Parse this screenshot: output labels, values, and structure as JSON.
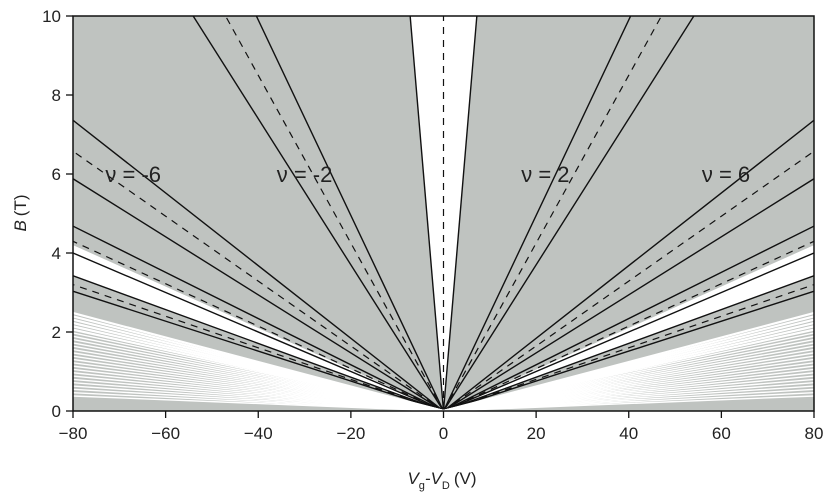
{
  "chart_data": {
    "type": "area",
    "xlabel": "V",
    "xlabel_sub1": "g",
    "xlabel_mid": "-V",
    "xlabel_sub2": "D",
    "xlabel_unit": "(V)",
    "ylabel": "B",
    "ylabel_unit": "(T)",
    "xlim": [
      -80,
      80
    ],
    "ylim": [
      0,
      10
    ],
    "x_ticks": [
      "-80",
      "-60",
      "-40",
      "-20",
      "0",
      "20",
      "40",
      "60",
      "80"
    ],
    "y_ticks": [
      "0",
      "2",
      "4",
      "6",
      "8",
      "10"
    ],
    "region_labels": [
      {
        "text": "ν = -6",
        "x": -67,
        "y": 5.8
      },
      {
        "text": "ν = -2",
        "x": -30,
        "y": 5.8
      },
      {
        "text": "ν = 2",
        "x": 22,
        "y": 5.8
      },
      {
        "text": "ν = 6",
        "x": 61,
        "y": 5.8
      }
    ],
    "landau_levels": [
      {
        "nu": 0,
        "slope_center": 0,
        "slope_inner": 1.33,
        "slope_outer": -1.33
      },
      {
        "nu": 4,
        "slope_center": 0.2125,
        "slope_inner": 0.2475,
        "slope_outer": 0.185
      },
      {
        "nu": 8,
        "slope_center": 0.0822,
        "slope_inner": 0.092,
        "slope_outer": 0.0735
      },
      {
        "nu": 12,
        "slope_center": 0.0537,
        "slope_inner": 0.0585,
        "slope_outer": 0.05
      },
      {
        "nu": 16,
        "slope_center": 0.04,
        "slope_inner": 0.0428,
        "slope_outer": 0.0379
      }
    ],
    "colors": {
      "filled_region": "#bfc3c0",
      "gap": "#ffffff",
      "line": "#111111"
    }
  }
}
